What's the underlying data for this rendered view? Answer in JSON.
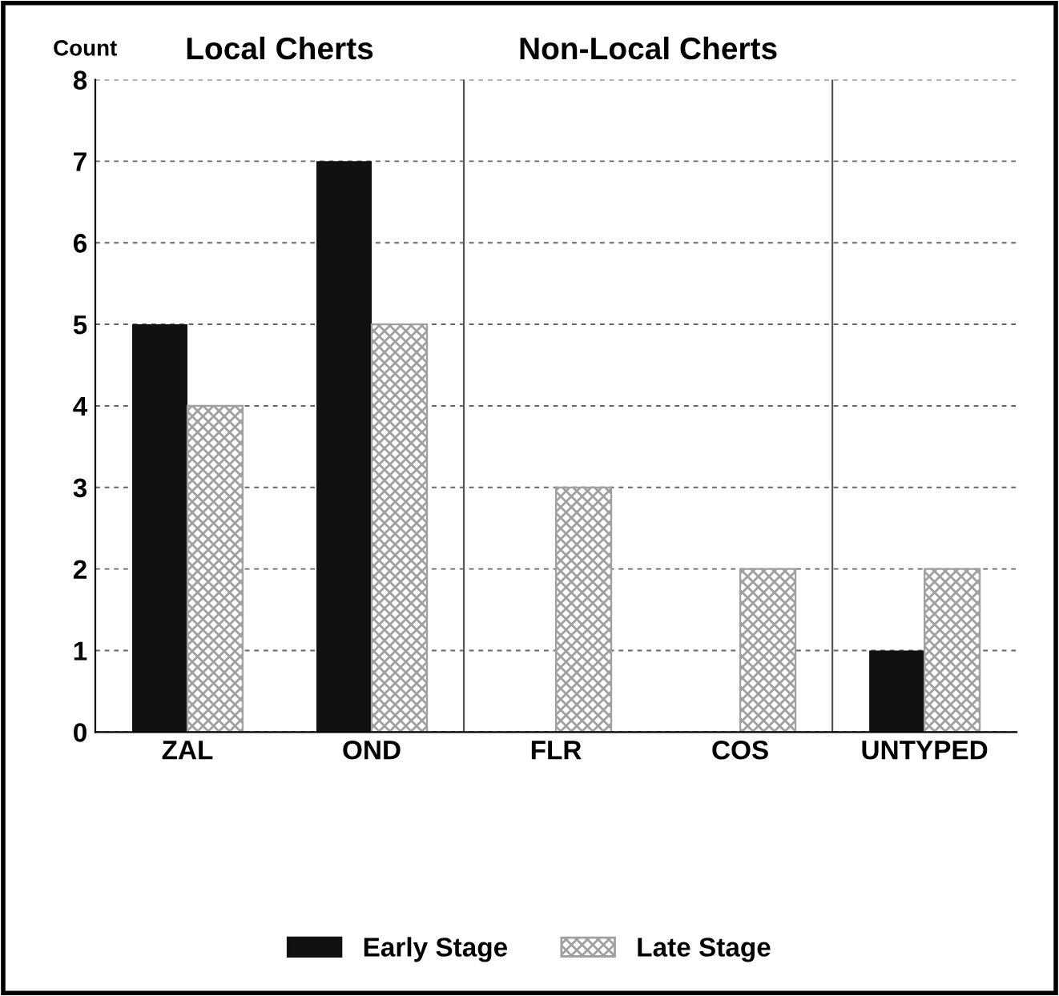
{
  "chart_data": {
    "type": "bar",
    "ylabel": "Count",
    "categories": [
      "ZAL",
      "OND",
      "FLR",
      "COS",
      "UNTYPED"
    ],
    "series": [
      {
        "name": "Early Stage",
        "color": "#111111",
        "values": [
          5,
          7,
          null,
          null,
          1
        ]
      },
      {
        "name": "Late Stage",
        "color": "#a0a0a0",
        "values": [
          4,
          5,
          3,
          2,
          2
        ]
      }
    ],
    "ylim": [
      0,
      8
    ],
    "yticks": [
      0,
      1,
      2,
      3,
      4,
      5,
      6,
      7,
      8
    ],
    "grid": "y",
    "legend": "bottom",
    "annotations": [
      "Local Cherts",
      "Non-Local Cherts"
    ]
  }
}
